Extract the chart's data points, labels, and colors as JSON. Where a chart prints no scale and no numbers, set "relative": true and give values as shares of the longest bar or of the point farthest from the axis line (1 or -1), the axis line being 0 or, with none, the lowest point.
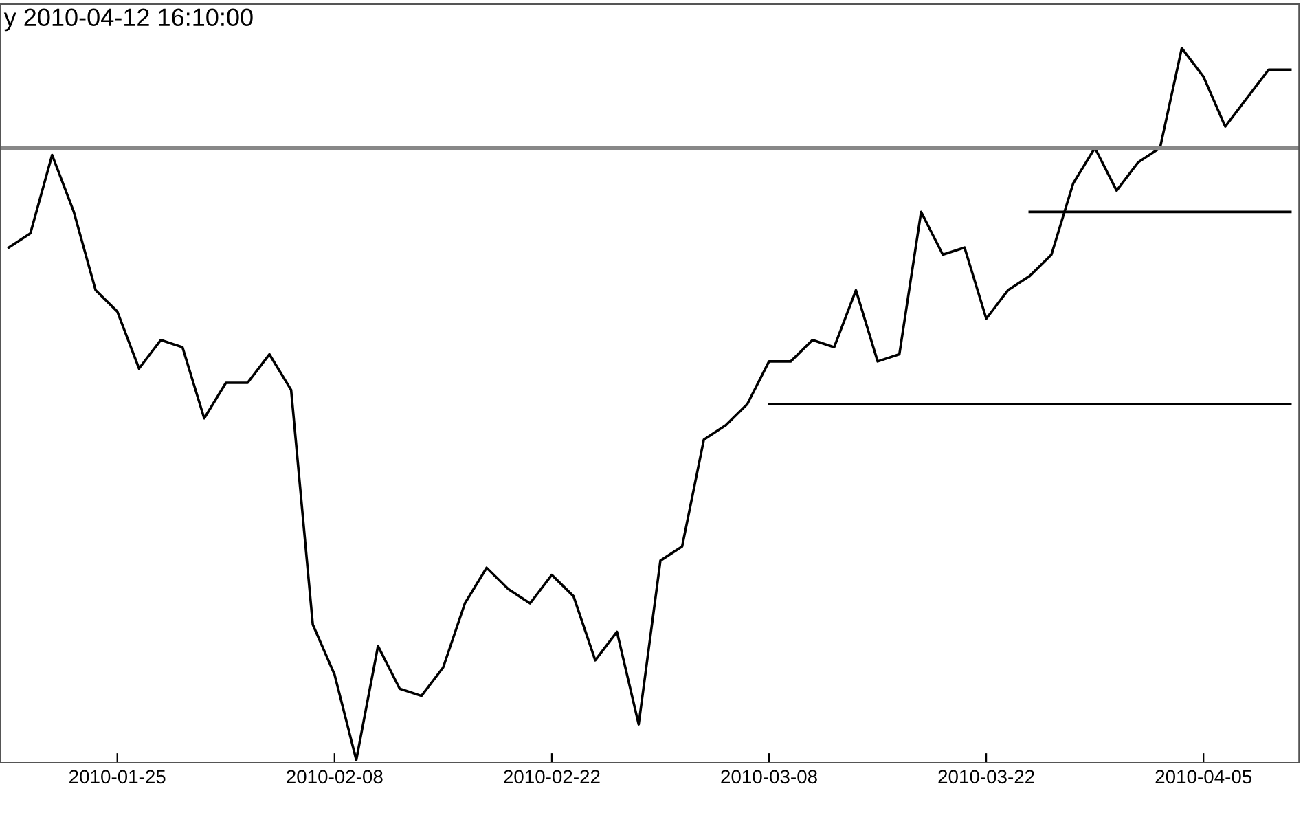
{
  "chart_data": {
    "type": "line",
    "title": "y 2010-04-12 16:10:00",
    "relative": true,
    "tick_labels": "x",
    "categories": [
      null,
      null,
      null,
      null,
      null,
      "2010-01-25",
      null,
      null,
      null,
      null,
      null,
      null,
      null,
      null,
      null,
      "2010-02-08",
      null,
      null,
      null,
      null,
      null,
      null,
      null,
      null,
      null,
      "2010-02-22",
      null,
      null,
      null,
      null,
      null,
      null,
      null,
      null,
      null,
      "2010-03-08",
      null,
      null,
      null,
      null,
      null,
      null,
      null,
      null,
      null,
      "2010-03-22",
      null,
      null,
      null,
      null,
      null,
      null,
      null,
      null,
      null,
      "2010-04-05",
      null,
      null,
      null,
      null
    ],
    "ref_lines": [
      {
        "axis": "y",
        "value": 0.86,
        "color": "#888888"
      }
    ],
    "series": [
      {
        "color": "#000000",
        "values": [
          0.72,
          0.74,
          0.85,
          0.77,
          0.66,
          0.63,
          0.55,
          0.59,
          0.58,
          0.48,
          0.53,
          0.53,
          0.57,
          0.52,
          0.19,
          0.12,
          0.0,
          0.16,
          0.1,
          0.09,
          0.13,
          0.22,
          0.27,
          0.24,
          0.22,
          0.26,
          0.23,
          0.14,
          0.18,
          0.05,
          0.28,
          0.3,
          0.45,
          0.47,
          0.5,
          0.56,
          0.56,
          0.59,
          0.58,
          0.66,
          0.56,
          0.57,
          0.77,
          0.71,
          0.72,
          0.62,
          0.66,
          0.68,
          0.71,
          0.81,
          0.86,
          0.8,
          0.84,
          0.86,
          1.0,
          0.96,
          0.89,
          0.93,
          0.97,
          0.97
        ]
      },
      {
        "color": "#000000",
        "values": [
          null,
          null,
          null,
          null,
          null,
          null,
          null,
          null,
          null,
          null,
          null,
          null,
          null,
          null,
          null,
          null,
          null,
          null,
          null,
          null,
          null,
          null,
          null,
          null,
          null,
          null,
          null,
          null,
          null,
          null,
          null,
          null,
          null,
          null,
          null,
          null,
          null,
          null,
          null,
          null,
          null,
          null,
          null,
          null,
          null,
          null,
          null,
          0.77,
          0.77,
          0.77,
          0.77,
          0.77,
          0.77,
          0.77,
          0.77,
          0.77,
          0.77,
          0.77,
          0.77,
          0.77
        ]
      },
      {
        "color": "#000000",
        "values": [
          null,
          null,
          null,
          null,
          null,
          null,
          null,
          null,
          null,
          null,
          null,
          null,
          null,
          null,
          null,
          null,
          null,
          null,
          null,
          null,
          null,
          null,
          null,
          null,
          null,
          null,
          null,
          null,
          null,
          null,
          null,
          null,
          null,
          null,
          null,
          0.5,
          0.5,
          0.5,
          0.5,
          0.5,
          0.5,
          0.5,
          0.5,
          0.5,
          0.5,
          0.5,
          0.5,
          0.5,
          0.5,
          0.5,
          0.5,
          0.5,
          0.5,
          0.5,
          0.5,
          0.5,
          0.5,
          0.5,
          0.5,
          0.5
        ]
      }
    ]
  }
}
